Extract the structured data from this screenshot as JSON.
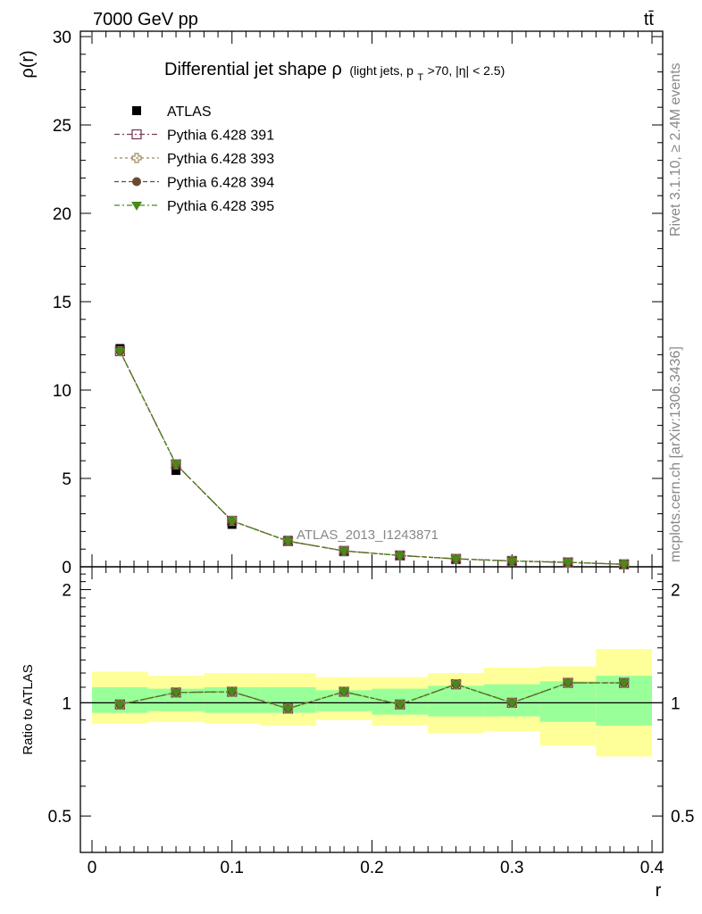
{
  "header": {
    "collision": "7000 GeV pp",
    "process": "tt̄",
    "title_main": "Differential jet shape ρ",
    "title_sub_open": "(light jets, p",
    "title_sub_T": "T",
    "title_sub_close": ">70, |η| < 2.5)"
  },
  "side_labels": {
    "rivet": "Rivet 3.1.10, ≥ 2.4M events",
    "mcplots": "mcplots.cern.ch [arXiv:1306.3436]"
  },
  "analysis_ref": "ATLAS_2013_I1243871",
  "colors": {
    "atlas": "#000000",
    "p391": "#7a3b57",
    "p393": "#9a8a5a",
    "p394": "#6a4a2e",
    "p395": "#4a8a1a",
    "band_inner": "#99ff99",
    "band_outer": "#ffff99"
  },
  "chart_data": [
    {
      "type": "line",
      "xlabel": "",
      "ylabel": "ρ(r)",
      "xlim": [
        0,
        0.4
      ],
      "ylim": [
        0,
        30
      ],
      "x_ticks": [
        "0",
        "0.1",
        "0.2",
        "0.3",
        "0.4"
      ],
      "y_ticks": [
        "0",
        "5",
        "10",
        "15",
        "20",
        "25",
        "30"
      ],
      "x": [
        0.02,
        0.06,
        0.1,
        0.14,
        0.18,
        0.22,
        0.26,
        0.3,
        0.34,
        0.38
      ],
      "series": [
        {
          "name": "ATLAS",
          "values": [
            12.35,
            5.45,
            2.4,
            1.5,
            0.85,
            0.65,
            0.4,
            0.33,
            0.22,
            0.12
          ]
        },
        {
          "name": "Pythia 6.428 391",
          "values": [
            12.2,
            5.8,
            2.6,
            1.45,
            0.9,
            0.64,
            0.45,
            0.33,
            0.25,
            0.14
          ]
        },
        {
          "name": "Pythia 6.428 393",
          "values": [
            12.2,
            5.8,
            2.6,
            1.45,
            0.9,
            0.64,
            0.45,
            0.33,
            0.25,
            0.14
          ]
        },
        {
          "name": "Pythia 6.428 394",
          "values": [
            12.2,
            5.8,
            2.6,
            1.45,
            0.9,
            0.64,
            0.45,
            0.33,
            0.25,
            0.14
          ]
        },
        {
          "name": "Pythia 6.428 395",
          "values": [
            12.2,
            5.8,
            2.6,
            1.45,
            0.9,
            0.64,
            0.45,
            0.33,
            0.25,
            0.14
          ]
        }
      ],
      "legend_position": "top-left",
      "grid": false
    },
    {
      "type": "line",
      "xlabel": "r",
      "ylabel": "Ratio to ATLAS",
      "xlim": [
        0,
        0.4
      ],
      "ylim": [
        0.4,
        2.3
      ],
      "y_scale": "log",
      "x_ticks": [
        "0",
        "0.1",
        "0.2",
        "0.3",
        "0.4"
      ],
      "y_ticks": [
        "0.5",
        "1",
        "2"
      ],
      "x": [
        0.02,
        0.06,
        0.1,
        0.14,
        0.18,
        0.22,
        0.26,
        0.3,
        0.34,
        0.38
      ],
      "bins": [
        [
          0.0,
          0.04
        ],
        [
          0.04,
          0.08
        ],
        [
          0.08,
          0.12
        ],
        [
          0.12,
          0.16
        ],
        [
          0.16,
          0.2
        ],
        [
          0.2,
          0.24
        ],
        [
          0.24,
          0.28
        ],
        [
          0.28,
          0.32
        ],
        [
          0.32,
          0.36
        ],
        [
          0.36,
          0.4
        ]
      ],
      "band_inner": [
        [
          0.94,
          1.1
        ],
        [
          0.95,
          1.09
        ],
        [
          0.94,
          1.1
        ],
        [
          0.94,
          1.1
        ],
        [
          0.95,
          1.08
        ],
        [
          0.93,
          1.09
        ],
        [
          0.92,
          1.11
        ],
        [
          0.92,
          1.12
        ],
        [
          0.89,
          1.14
        ],
        [
          0.87,
          1.18
        ]
      ],
      "band_outer": [
        [
          0.88,
          1.21
        ],
        [
          0.89,
          1.18
        ],
        [
          0.88,
          1.2
        ],
        [
          0.87,
          1.2
        ],
        [
          0.9,
          1.17
        ],
        [
          0.87,
          1.17
        ],
        [
          0.83,
          1.2
        ],
        [
          0.84,
          1.24
        ],
        [
          0.77,
          1.25
        ],
        [
          0.72,
          1.39
        ]
      ],
      "series": [
        {
          "name": "Pythia 6.428 391",
          "values": [
            0.99,
            1.065,
            1.07,
            0.965,
            1.07,
            0.99,
            1.12,
            1.0,
            1.13,
            1.13
          ]
        },
        {
          "name": "Pythia 6.428 393",
          "values": [
            0.99,
            1.065,
            1.07,
            0.965,
            1.07,
            0.99,
            1.12,
            1.0,
            1.13,
            1.13
          ]
        },
        {
          "name": "Pythia 6.428 394",
          "values": [
            0.99,
            1.065,
            1.07,
            0.965,
            1.07,
            0.99,
            1.12,
            1.0,
            1.13,
            1.13
          ]
        },
        {
          "name": "Pythia 6.428 395",
          "values": [
            0.99,
            1.065,
            1.07,
            0.965,
            1.07,
            0.99,
            1.12,
            1.0,
            1.13,
            1.13
          ]
        }
      ],
      "reference_line": 1
    }
  ]
}
